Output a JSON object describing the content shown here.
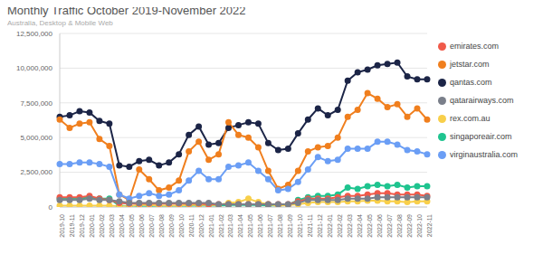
{
  "chart_data": {
    "type": "line",
    "title": "Monthly Traffic October 2019-November 2022",
    "subtitle": "Australia, Desktop & Mobile Web",
    "categories": [
      "2019-10",
      "2019-11",
      "2019-12",
      "2020-01",
      "2020-02",
      "2020-03",
      "2020-04",
      "2020-05",
      "2020-06",
      "2020-07",
      "2020-08",
      "2020-09",
      "2020-10",
      "2020-11",
      "2020-12",
      "2021-01",
      "2021-02",
      "2021-03",
      "2021-04",
      "2021-05",
      "2021-06",
      "2021-07",
      "2021-08",
      "2021-09",
      "2021-10",
      "2021-11",
      "2021-12",
      "2022-01",
      "2022-02",
      "2022-03",
      "2022-04",
      "2022-05",
      "2022-06",
      "2022-07",
      "2022-08",
      "2022-09",
      "2022-10",
      "2022-11"
    ],
    "series": [
      {
        "name": "qantas.com",
        "color": "#1c2547",
        "values": [
          6500000,
          6600000,
          6900000,
          6800000,
          6200000,
          6000000,
          3000000,
          2900000,
          3300000,
          3400000,
          3000000,
          3200000,
          3800000,
          5200000,
          5800000,
          4500000,
          4600000,
          5700000,
          5900000,
          6100000,
          6000000,
          4600000,
          4100000,
          4200000,
          5300000,
          6300000,
          7100000,
          6600000,
          7000000,
          9100000,
          9700000,
          9900000,
          10200000,
          10300000,
          10400000,
          9400000,
          9200000,
          9200000
        ]
      },
      {
        "name": "jetstar.com",
        "color": "#f07f1e",
        "values": [
          6300000,
          5700000,
          6000000,
          6100000,
          4900000,
          4400000,
          900000,
          500000,
          2700000,
          2000000,
          1200000,
          1400000,
          1900000,
          4000000,
          4700000,
          3400000,
          3800000,
          6100000,
          5200000,
          5000000,
          4300000,
          2600000,
          1300000,
          1600000,
          2600000,
          4000000,
          4300000,
          4400000,
          5000000,
          6500000,
          7000000,
          8200000,
          7800000,
          7200000,
          7400000,
          6500000,
          7100000,
          6300000
        ]
      },
      {
        "name": "virginaustralia.com",
        "color": "#6b9ef5",
        "values": [
          3100000,
          3100000,
          3200000,
          3200000,
          3100000,
          2900000,
          900000,
          600000,
          800000,
          1000000,
          800000,
          900000,
          1200000,
          1900000,
          2600000,
          2000000,
          2000000,
          2900000,
          3000000,
          3200000,
          2600000,
          2000000,
          1200000,
          1300000,
          1800000,
          2700000,
          3600000,
          3300000,
          3400000,
          4200000,
          4200000,
          4200000,
          4700000,
          4700000,
          4500000,
          4100000,
          4000000,
          3800000
        ]
      },
      {
        "name": "singaporeair.com",
        "color": "#1fc48f",
        "values": [
          600000,
          600000,
          600000,
          700000,
          600000,
          600000,
          100000,
          50000,
          50000,
          50000,
          50000,
          50000,
          60000,
          80000,
          100000,
          100000,
          100000,
          150000,
          150000,
          150000,
          150000,
          120000,
          100000,
          150000,
          500000,
          700000,
          800000,
          800000,
          900000,
          1400000,
          1300000,
          1500000,
          1600000,
          1500000,
          1600000,
          1400000,
          1500000,
          1500000
        ]
      },
      {
        "name": "rex.com.au",
        "color": "#f8cf4a",
        "values": [
          100000,
          100000,
          100000,
          100000,
          100000,
          100000,
          50000,
          50000,
          150000,
          150000,
          100000,
          100000,
          100000,
          150000,
          150000,
          150000,
          150000,
          300000,
          350000,
          600000,
          350000,
          200000,
          100000,
          150000,
          200000,
          300000,
          350000,
          350000,
          350000,
          400000,
          400000,
          450000,
          450000,
          400000,
          400000,
          350000,
          400000,
          400000
        ]
      },
      {
        "name": "emirates.com",
        "color": "#f05a4a",
        "values": [
          700000,
          700000,
          700000,
          800000,
          600000,
          500000,
          300000,
          250000,
          250000,
          250000,
          250000,
          250000,
          250000,
          250000,
          250000,
          200000,
          200000,
          200000,
          200000,
          200000,
          200000,
          200000,
          200000,
          200000,
          400000,
          600000,
          600000,
          600000,
          700000,
          800000,
          800000,
          900000,
          1000000,
          1000000,
          900000,
          900000,
          900000,
          800000
        ]
      },
      {
        "name": "qatarairways.com",
        "color": "#7a7f8a",
        "values": [
          500000,
          500000,
          500000,
          600000,
          500000,
          500000,
          400000,
          300000,
          300000,
          300000,
          300000,
          300000,
          300000,
          300000,
          300000,
          300000,
          200000,
          200000,
          200000,
          200000,
          200000,
          200000,
          200000,
          200000,
          300000,
          500000,
          500000,
          500000,
          500000,
          600000,
          600000,
          600000,
          700000,
          700000,
          700000,
          700000,
          700000,
          700000
        ]
      }
    ],
    "ylim": [
      0,
      12500000
    ],
    "yticks": [
      0,
      {
        "value": 2500000,
        "label": "2,500,000"
      },
      {
        "value": 5000000,
        "label": "5,000,000"
      },
      {
        "value": 7500000,
        "label": "7,500,000"
      },
      {
        "value": 10000000,
        "label": "10,000,000"
      },
      {
        "value": 12500000,
        "label": "12,500,000"
      }
    ],
    "grid": true,
    "legend": "right",
    "marker": "circle"
  }
}
